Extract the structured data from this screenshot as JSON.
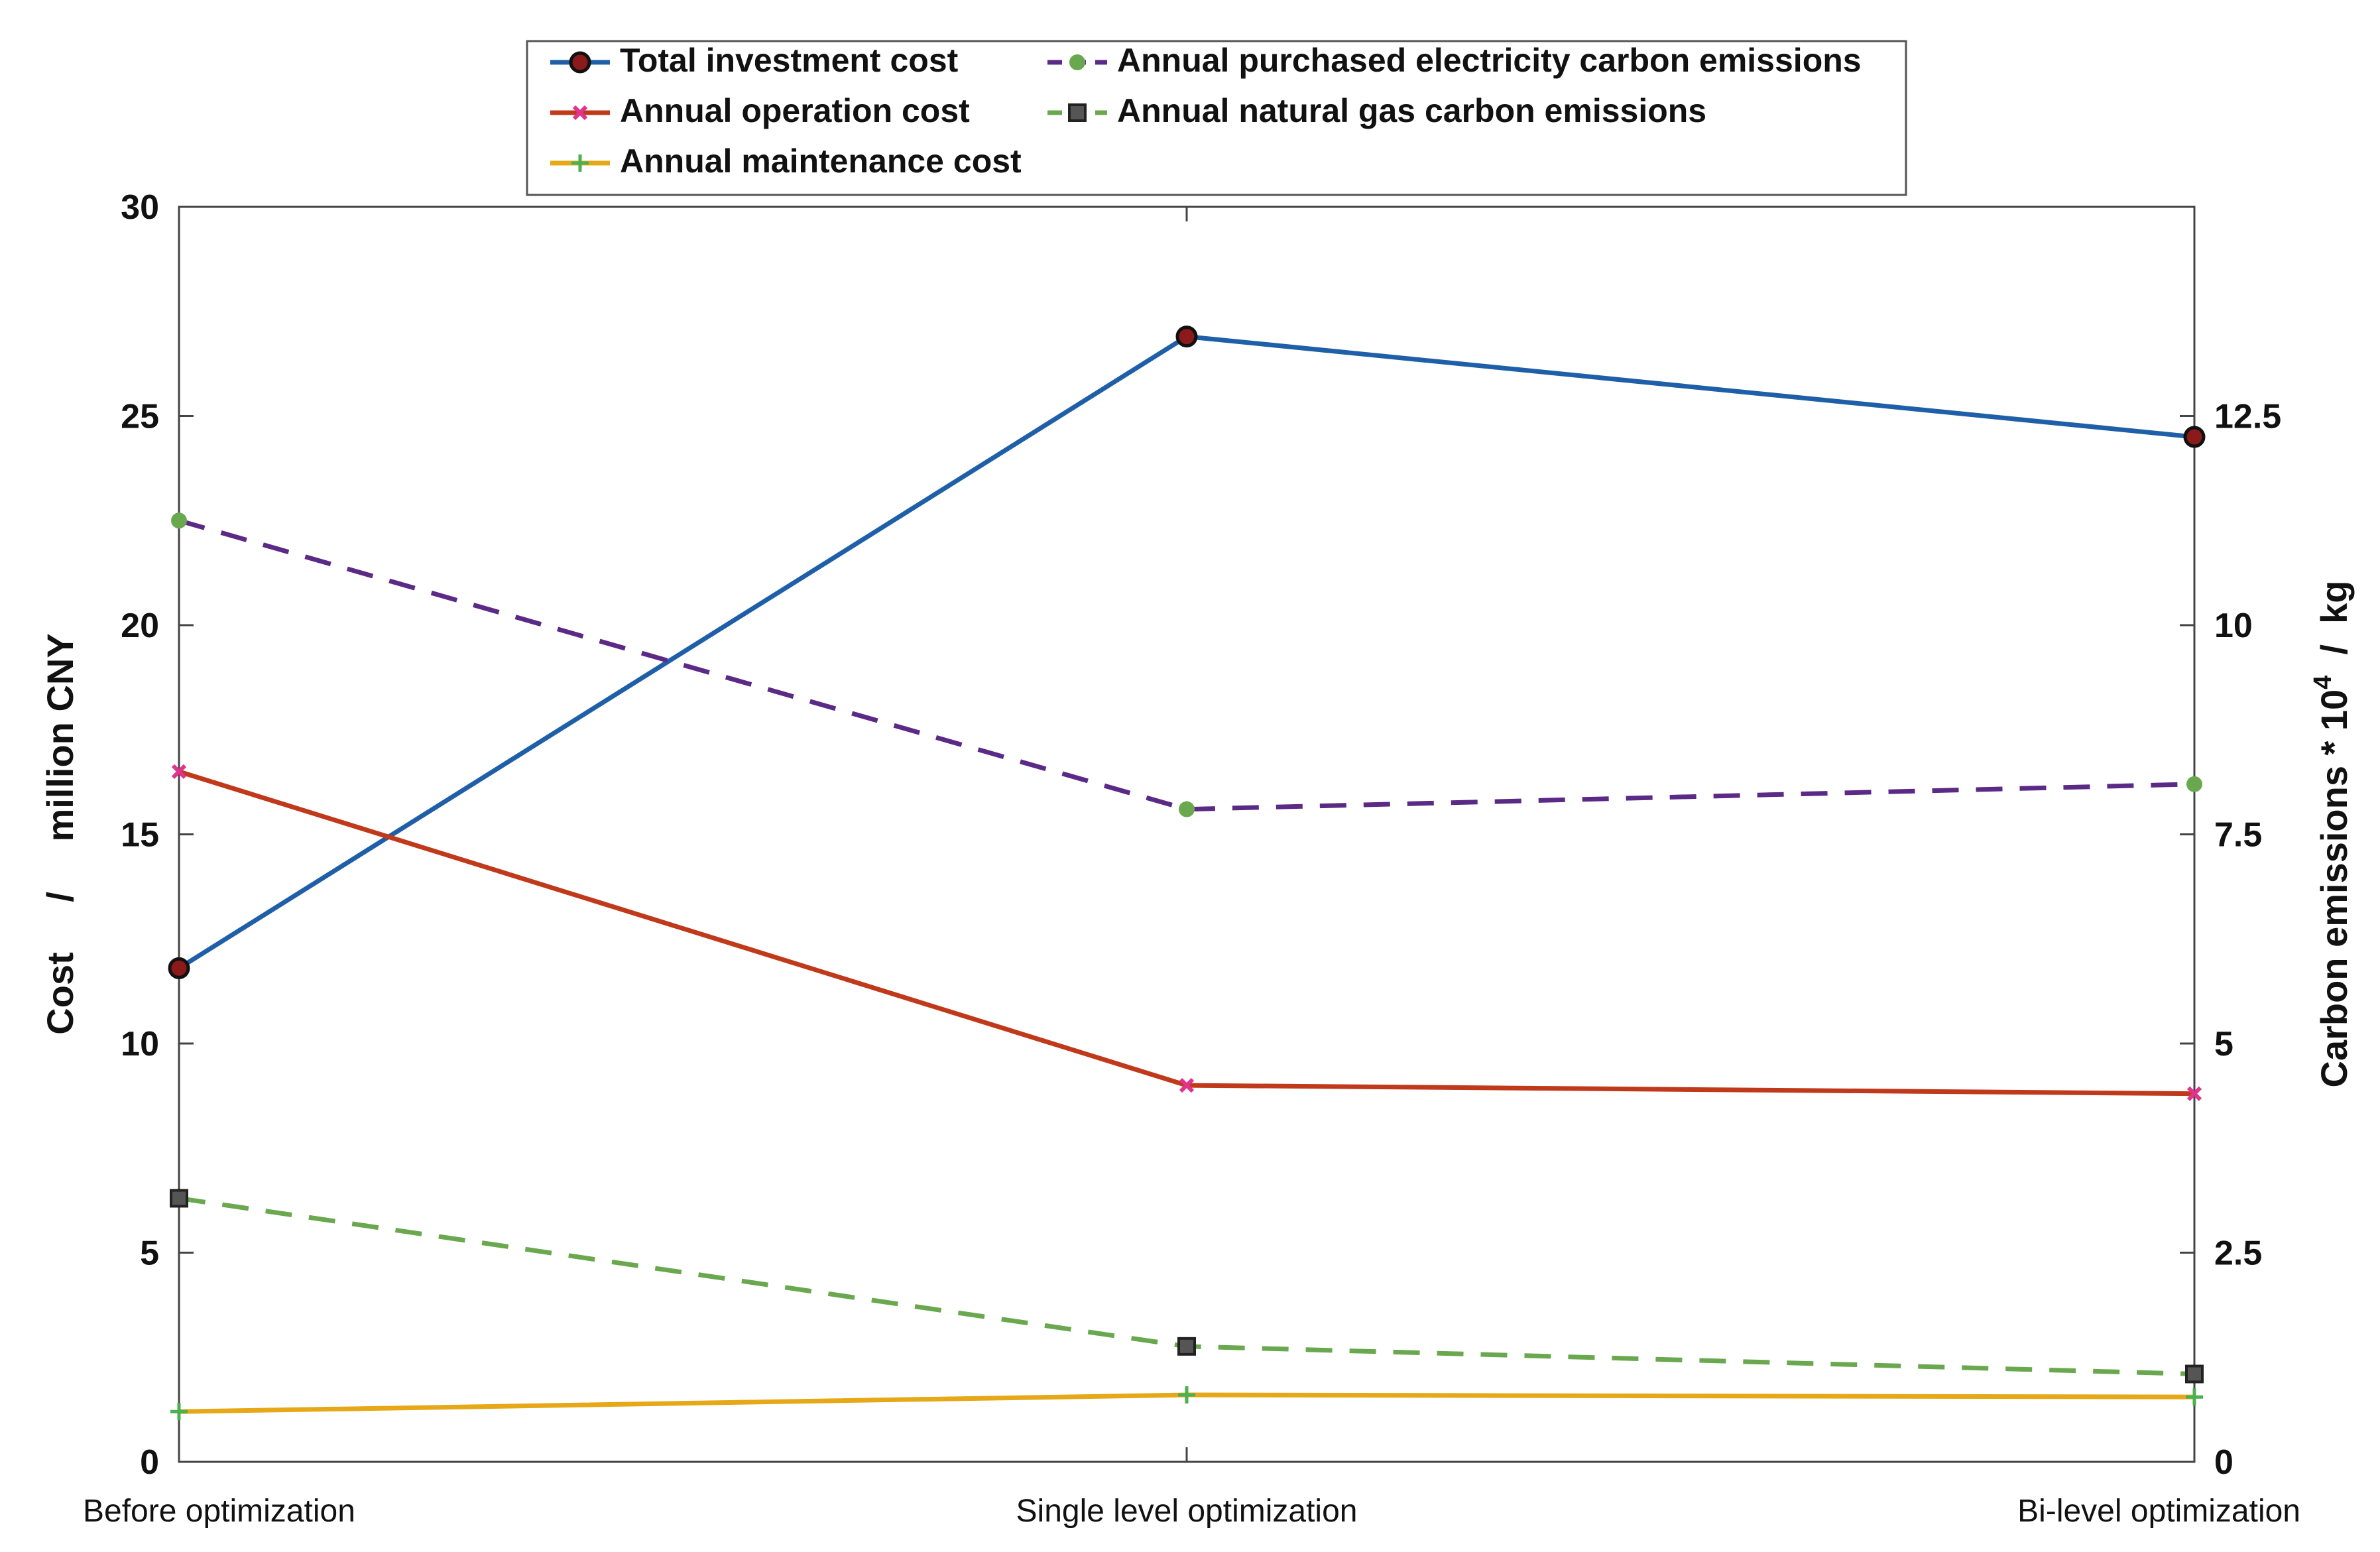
{
  "chart_data": {
    "type": "line",
    "title": "",
    "categories": [
      "Before optimization",
      "Single level optimization",
      "Bi-level optimization"
    ],
    "y_left": {
      "label_parts": [
        "Cost",
        "/",
        "million CNY"
      ],
      "range": [
        0,
        30
      ],
      "ticks": [
        0,
        5,
        10,
        15,
        20,
        25,
        30
      ],
      "tick_labels": [
        "0",
        "5",
        "10",
        "15",
        "20",
        "25",
        "30"
      ]
    },
    "y_right": {
      "label_main": "Carbon emissions * 10",
      "label_sup": "4",
      "label_unit": "  /  kg",
      "range": [
        0,
        15
      ],
      "ticks": [
        0,
        2.5,
        5,
        7.5,
        10,
        12.5
      ],
      "tick_labels": [
        "0",
        "2.5",
        "5",
        "7.5",
        "10",
        "12.5"
      ]
    },
    "grid": false,
    "legend_position": "top",
    "series": [
      {
        "name": "Total investment cost",
        "axis": "left",
        "values": [
          11.8,
          26.9,
          24.5
        ],
        "color": "#1f5fa8",
        "marker_color": "#8b1a1a",
        "dash": "solid",
        "marker": "circle"
      },
      {
        "name": "Annual purchased electricity carbon emissions",
        "axis": "right",
        "values": [
          11.25,
          7.8,
          8.1
        ],
        "color": "#5b2a86",
        "marker_color": "#6aa84f",
        "dash": "dashed",
        "marker": "dot"
      },
      {
        "name": "Annual operation cost",
        "axis": "left",
        "values": [
          16.5,
          9.0,
          8.8
        ],
        "color": "#c0391b",
        "marker_color": "#e0338c",
        "dash": "solid",
        "marker": "x"
      },
      {
        "name": "Annual natural gas carbon emissions",
        "axis": "right",
        "values": [
          3.15,
          1.38,
          1.05
        ],
        "color": "#6aa84f",
        "marker_color": "#555555",
        "dash": "dashed",
        "marker": "square"
      },
      {
        "name": "Annual maintenance cost",
        "axis": "left",
        "values": [
          1.2,
          1.6,
          1.55
        ],
        "color": "#e6a817",
        "marker_color": "#4caf50",
        "dash": "solid",
        "marker": "plus"
      }
    ]
  }
}
